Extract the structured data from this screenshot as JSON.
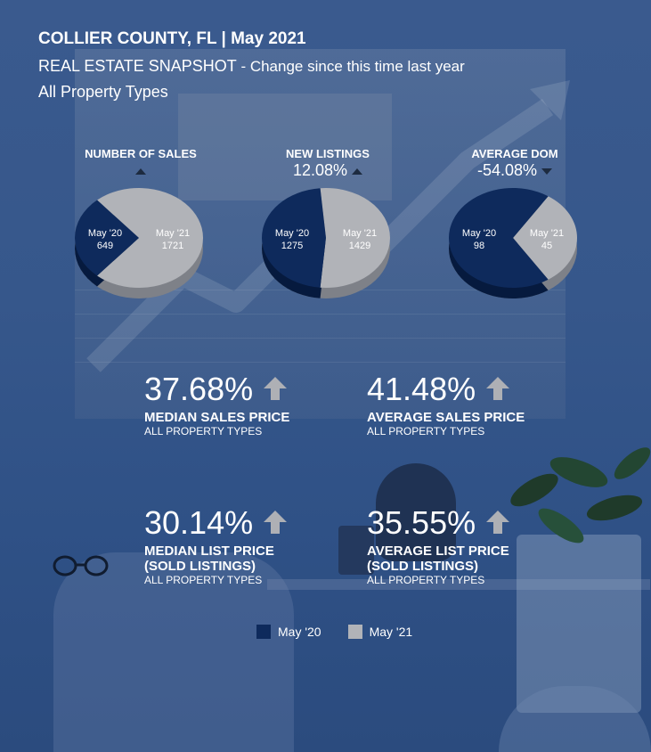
{
  "header": {
    "title": "COLLIER COUNTY, FL | May 2021",
    "subtitle": "REAL ESTATE SNAPSHOT",
    "subtitle_suffix": " - Change since this time last year",
    "property_types": "All Property Types"
  },
  "colors": {
    "may20": "#0e2a5c",
    "may21": "#b1b3b8",
    "shade20": "#061a3e",
    "shade21": "#7e8188",
    "arrow": "#aeb0b5"
  },
  "chart_data": [
    {
      "type": "pie",
      "title": "NUMBER OF SALES",
      "change": "",
      "change_direction": "up",
      "slices": [
        {
          "label": "May '20",
          "value": 649
        },
        {
          "label": "May '21",
          "value": 1721
        }
      ]
    },
    {
      "type": "pie",
      "title": "NEW LISTINGS",
      "change": "12.08%",
      "change_direction": "up",
      "slices": [
        {
          "label": "May '20",
          "value": 1275
        },
        {
          "label": "May '21",
          "value": 1429
        }
      ]
    },
    {
      "type": "pie",
      "title": "AVERAGE DOM",
      "change": "-54.08%",
      "change_direction": "down",
      "slices": [
        {
          "label": "May '20",
          "value": 98
        },
        {
          "label": "May '21",
          "value": 45
        }
      ]
    }
  ],
  "stats": [
    {
      "pct": "37.68%",
      "label": "MEDIAN SALES PRICE",
      "label2": "",
      "sublabel": "ALL PROPERTY TYPES"
    },
    {
      "pct": "41.48%",
      "label": "AVERAGE SALES PRICE",
      "label2": "",
      "sublabel": "ALL PROPERTY TYPES"
    },
    {
      "pct": "30.14%",
      "label": "MEDIAN LIST PRICE",
      "label2": "(SOLD LISTINGS)",
      "sublabel": "ALL PROPERTY TYPES"
    },
    {
      "pct": "35.55%",
      "label": "AVERAGE LIST PRICE",
      "label2": "(SOLD LISTINGS)",
      "sublabel": "ALL PROPERTY TYPES"
    }
  ],
  "legend": [
    {
      "label": "May '20"
    },
    {
      "label": "May '21"
    }
  ]
}
